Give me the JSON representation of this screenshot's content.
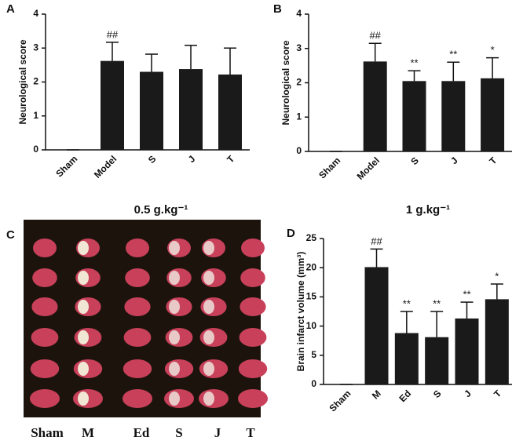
{
  "chart_data": [
    {
      "type": "bar",
      "panel": "A",
      "ylabel": "Neurological score",
      "xlabel": "0.5 g.kg⁻¹",
      "categories": [
        "Sham",
        "Model",
        "S",
        "J",
        "T"
      ],
      "values": [
        0,
        2.62,
        2.3,
        2.38,
        2.22
      ],
      "errors": [
        0,
        0.55,
        0.52,
        0.7,
        0.78
      ],
      "annotations": [
        null,
        "##",
        null,
        null,
        null
      ],
      "color": "#1a1a1a",
      "ylim": [
        0,
        4
      ],
      "yticks": [
        0,
        1,
        2,
        3,
        4
      ]
    },
    {
      "type": "bar",
      "panel": "B",
      "ylabel": "Neurological score",
      "xlabel": "1 g.kg⁻¹",
      "categories": [
        "Sham",
        "Model",
        "S",
        "J",
        "T"
      ],
      "values": [
        0,
        2.62,
        2.05,
        2.05,
        2.13
      ],
      "errors": [
        0,
        0.53,
        0.3,
        0.55,
        0.6
      ],
      "annotations": [
        null,
        "##",
        "**",
        "**",
        "*"
      ],
      "color": "#1a1a1a",
      "ylim": [
        0,
        4
      ],
      "yticks": [
        0,
        1,
        2,
        3,
        4
      ]
    },
    {
      "type": "bar",
      "panel": "D",
      "ylabel": "Brain infarct volume (mm³)",
      "categories": [
        "Sham",
        "M",
        "Ed",
        "S",
        "J",
        "T"
      ],
      "values": [
        0,
        20.1,
        8.8,
        8.1,
        11.3,
        14.6
      ],
      "errors": [
        0,
        3.1,
        3.7,
        4.4,
        2.8,
        2.6
      ],
      "annotations": [
        null,
        "##",
        "**",
        "**",
        "**",
        "*"
      ],
      "color": "#1a1a1a",
      "ylim": [
        0,
        25
      ],
      "yticks": [
        0,
        5,
        10,
        15,
        20,
        25
      ]
    }
  ],
  "photo_panel": {
    "panel": "C",
    "labels": [
      "Sham",
      "M",
      "Ed",
      "S",
      "J",
      "T"
    ]
  }
}
